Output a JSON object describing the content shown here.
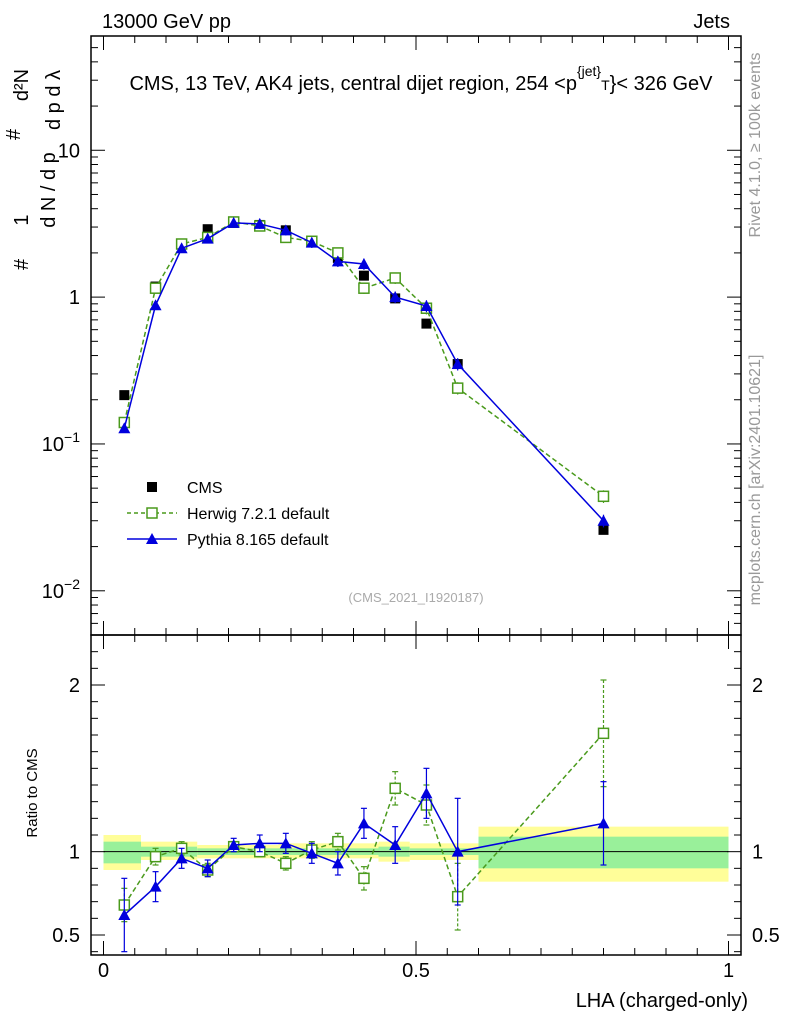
{
  "header": {
    "energy": "13000 GeV pp",
    "category": "Jets",
    "rivet_tag": "Rivet 4.1.0, ≥ 100k events",
    "source_tag": "mcplots.cern.ch [arXiv:2401.10621]",
    "analysis_id": "(CMS_2021_I1920187)"
  },
  "chart_data": [
    {
      "type": "scatter",
      "title": "CMS, 13 TeV, AK4 jets, central dijet region, 254 <p_T^{jet}< 326 GeV",
      "xlabel": "LHA (charged-only)",
      "ylabel": "#1/dN/dp_T  #d²N/dp_T dλ",
      "yscale": "log",
      "xlim": [
        -0.02,
        1.02
      ],
      "ylim": [
        0.005,
        60
      ],
      "x": [
        0.0333,
        0.0833,
        0.125,
        0.1667,
        0.2083,
        0.25,
        0.2917,
        0.3333,
        0.375,
        0.4167,
        0.4667,
        0.5167,
        0.5667,
        0.8
      ],
      "series": [
        {
          "name": "CMS",
          "marker": "filled-square",
          "color": "#000000",
          "values": [
            0.215,
            1.18,
            2.3,
            2.9,
            3.2,
            3.1,
            2.85,
            2.4,
            1.85,
            1.4,
            0.98,
            0.66,
            0.35,
            0.026
          ]
        },
        {
          "name": "Herwig 7.2.1 default",
          "marker": "open-square",
          "line": "dashed",
          "color": "#4a9a1c",
          "values": [
            0.14,
            1.15,
            2.3,
            2.55,
            3.25,
            3.05,
            2.55,
            2.4,
            2.0,
            1.15,
            1.35,
            0.84,
            0.24,
            0.044
          ]
        },
        {
          "name": "Pythia 8.165 default",
          "marker": "filled-triangle",
          "line": "solid",
          "color": "#0000dd",
          "values": [
            0.128,
            0.88,
            2.15,
            2.5,
            3.2,
            3.15,
            2.85,
            2.35,
            1.75,
            1.68,
            1.0,
            0.87,
            0.35,
            0.03
          ]
        }
      ],
      "yticks": [
        {
          "value": 0.01,
          "base": "10",
          "exp": "−2"
        },
        {
          "value": 0.1,
          "base": "10",
          "exp": "−1"
        },
        {
          "value": 1,
          "base": "1",
          "exp": ""
        },
        {
          "value": 10,
          "base": "10",
          "exp": ""
        }
      ]
    },
    {
      "type": "scatter",
      "title": "",
      "xlabel": "LHA (charged-only)",
      "ylabel": "Ratio to CMS",
      "xlim": [
        -0.02,
        1.02
      ],
      "ylim": [
        0.38,
        2.3
      ],
      "xticks": [
        "0",
        "0.5",
        "1"
      ],
      "yticks": [
        "0.5",
        "1",
        "2"
      ],
      "uncertainty_bands": [
        {
          "x0": 0.0,
          "x1": 0.06,
          "inner": [
            0.93,
            1.06
          ],
          "outer": [
            0.89,
            1.1
          ]
        },
        {
          "x0": 0.06,
          "x1": 0.15,
          "inner": [
            0.97,
            1.03
          ],
          "outer": [
            0.95,
            1.06
          ]
        },
        {
          "x0": 0.15,
          "x1": 0.28,
          "inner": [
            0.98,
            1.02
          ],
          "outer": [
            0.96,
            1.04
          ]
        },
        {
          "x0": 0.28,
          "x1": 0.44,
          "inner": [
            0.98,
            1.02
          ],
          "outer": [
            0.96,
            1.05
          ]
        },
        {
          "x0": 0.44,
          "x1": 0.49,
          "inner": [
            0.97,
            1.03
          ],
          "outer": [
            0.94,
            1.06
          ]
        },
        {
          "x0": 0.49,
          "x1": 0.6,
          "inner": [
            0.98,
            1.02
          ],
          "outer": [
            0.95,
            1.05
          ]
        },
        {
          "x0": 0.6,
          "x1": 1.0,
          "inner": [
            0.9,
            1.09
          ],
          "outer": [
            0.82,
            1.15
          ]
        }
      ],
      "series": [
        {
          "name": "Herwig 7.2.1 default",
          "color": "#4a9a1c",
          "values": [
            0.68,
            0.97,
            1.02,
            0.89,
            1.03,
            1.0,
            0.93,
            1.01,
            1.06,
            0.84,
            1.38,
            1.28,
            0.73,
            1.71
          ],
          "errors": [
            0.1,
            0.05,
            0.04,
            0.04,
            0.03,
            0.03,
            0.04,
            0.05,
            0.05,
            0.07,
            0.1,
            0.12,
            0.2,
            0.32
          ]
        },
        {
          "name": "Pythia 8.165 default",
          "color": "#0000dd",
          "values": [
            0.62,
            0.79,
            0.96,
            0.9,
            1.04,
            1.05,
            1.05,
            0.99,
            0.93,
            1.17,
            1.04,
            1.35,
            1.0,
            1.17
          ],
          "errors": [
            0.22,
            0.09,
            0.06,
            0.05,
            0.04,
            0.05,
            0.06,
            0.06,
            0.07,
            0.09,
            0.11,
            0.15,
            0.32,
            0.25
          ]
        }
      ]
    }
  ]
}
